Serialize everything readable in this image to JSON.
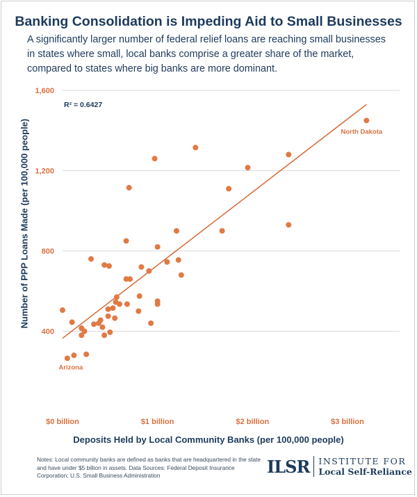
{
  "header": {
    "title": "Banking Consolidation is Impeding Aid to Small Businesses",
    "subtitle": "A significantly larger number of federal relief loans are reaching small businesses in states where small, local banks comprise a greater share of the market, compared to states where big banks are more dominant."
  },
  "chart_data": {
    "type": "scatter",
    "xlabel": "Deposits Held by Local Community Banks (per 100,000 people)",
    "ylabel": "Number of PPP Loans Made (per 100,000 people)",
    "xlim": [
      0,
      3.3
    ],
    "ylim": [
      0,
      1600
    ],
    "x_ticks": [
      0,
      1,
      2,
      3
    ],
    "x_tick_labels": [
      "$0 billion",
      "$1 billion",
      "$2 billion",
      "$3 billion"
    ],
    "y_ticks": [
      400,
      800,
      1200,
      1600
    ],
    "y_tick_labels": [
      "400",
      "800",
      "1,200",
      "1,600"
    ],
    "grid": "horizontal",
    "r_squared_label": "R² = 0.6427",
    "trendline": {
      "x": [
        0,
        3.2
      ],
      "y": [
        365,
        1530
      ]
    },
    "annotations": [
      {
        "text": "North Dakota",
        "x": 3.2,
        "y": 1450
      },
      {
        "text": "Arizona",
        "x": 0.05,
        "y": 265
      }
    ],
    "colors": {
      "points": "#e07a45",
      "line": "#d9703f",
      "axis_text": "#d9703f",
      "label": "#1d3a5c",
      "grid": "#d9d9d9"
    },
    "points": [
      {
        "x": 0.0,
        "y": 505
      },
      {
        "x": 0.05,
        "y": 265
      },
      {
        "x": 0.1,
        "y": 445
      },
      {
        "x": 0.12,
        "y": 280
      },
      {
        "x": 0.2,
        "y": 415
      },
      {
        "x": 0.2,
        "y": 380
      },
      {
        "x": 0.23,
        "y": 400
      },
      {
        "x": 0.25,
        "y": 285
      },
      {
        "x": 0.3,
        "y": 760
      },
      {
        "x": 0.33,
        "y": 435
      },
      {
        "x": 0.38,
        "y": 440
      },
      {
        "x": 0.4,
        "y": 455
      },
      {
        "x": 0.42,
        "y": 420
      },
      {
        "x": 0.44,
        "y": 380
      },
      {
        "x": 0.44,
        "y": 730
      },
      {
        "x": 0.49,
        "y": 725
      },
      {
        "x": 0.48,
        "y": 475
      },
      {
        "x": 0.48,
        "y": 510
      },
      {
        "x": 0.5,
        "y": 395
      },
      {
        "x": 0.53,
        "y": 515
      },
      {
        "x": 0.55,
        "y": 465
      },
      {
        "x": 0.56,
        "y": 545
      },
      {
        "x": 0.57,
        "y": 570
      },
      {
        "x": 0.6,
        "y": 535
      },
      {
        "x": 0.67,
        "y": 850
      },
      {
        "x": 0.67,
        "y": 660
      },
      {
        "x": 0.68,
        "y": 535
      },
      {
        "x": 0.7,
        "y": 1115
      },
      {
        "x": 0.71,
        "y": 660
      },
      {
        "x": 0.8,
        "y": 500
      },
      {
        "x": 0.81,
        "y": 575
      },
      {
        "x": 0.83,
        "y": 720
      },
      {
        "x": 0.91,
        "y": 700
      },
      {
        "x": 0.93,
        "y": 440
      },
      {
        "x": 0.97,
        "y": 1260
      },
      {
        "x": 1.0,
        "y": 820
      },
      {
        "x": 1.0,
        "y": 550
      },
      {
        "x": 1.0,
        "y": 535
      },
      {
        "x": 1.1,
        "y": 745
      },
      {
        "x": 1.2,
        "y": 900
      },
      {
        "x": 1.22,
        "y": 755
      },
      {
        "x": 1.25,
        "y": 680
      },
      {
        "x": 1.4,
        "y": 1315
      },
      {
        "x": 1.68,
        "y": 900
      },
      {
        "x": 1.75,
        "y": 1110
      },
      {
        "x": 1.95,
        "y": 1215
      },
      {
        "x": 2.38,
        "y": 1280
      },
      {
        "x": 2.38,
        "y": 930
      },
      {
        "x": 3.2,
        "y": 1450
      }
    ]
  },
  "footer": {
    "notes": "Notes: Local community banks are defined as banks that are headquartered in the state and have under $5 billion in assets. Data Sources: Federal Deposit Insurance Corporation; U.S. Small Business Administration",
    "logo_mark_1": "IL",
    "logo_mark_2": "SR",
    "logo_line1": "INSTITUTE FOR",
    "logo_line2": "Local Self-Reliance"
  }
}
